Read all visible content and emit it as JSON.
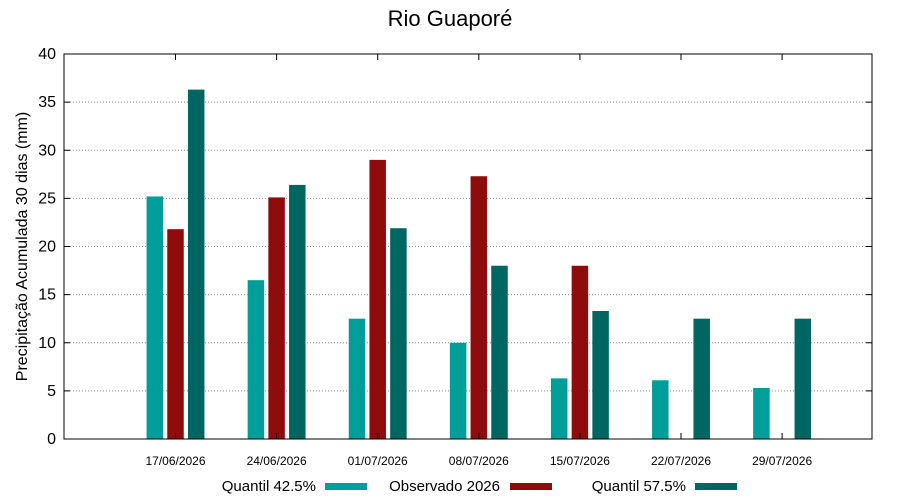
{
  "chart_data": {
    "type": "bar",
    "title": "Rio Guaporé",
    "xlabel": "",
    "ylabel": "Precipitação Acumulada 30 dias (mm)",
    "ylim": [
      0,
      40
    ],
    "yticks": [
      0,
      5,
      10,
      15,
      20,
      25,
      30,
      35,
      40
    ],
    "grid": true,
    "legend_position": "bottom",
    "categories": [
      "17/06/2026",
      "24/06/2026",
      "01/07/2026",
      "08/07/2026",
      "15/07/2026",
      "22/07/2026",
      "29/07/2026"
    ],
    "series": [
      {
        "name": "Quantil 42.5%",
        "color": "#009e9a",
        "values": [
          25.2,
          16.5,
          12.5,
          10.0,
          6.3,
          6.1,
          5.3
        ]
      },
      {
        "name": "Observado 2026",
        "color": "#8f0c0c",
        "values": [
          21.8,
          25.1,
          29.0,
          27.3,
          18.0,
          null,
          null
        ]
      },
      {
        "name": "Quantil 57.5%",
        "color": "#006661",
        "values": [
          36.3,
          26.4,
          21.9,
          18.0,
          13.3,
          12.5,
          12.5
        ]
      }
    ]
  }
}
